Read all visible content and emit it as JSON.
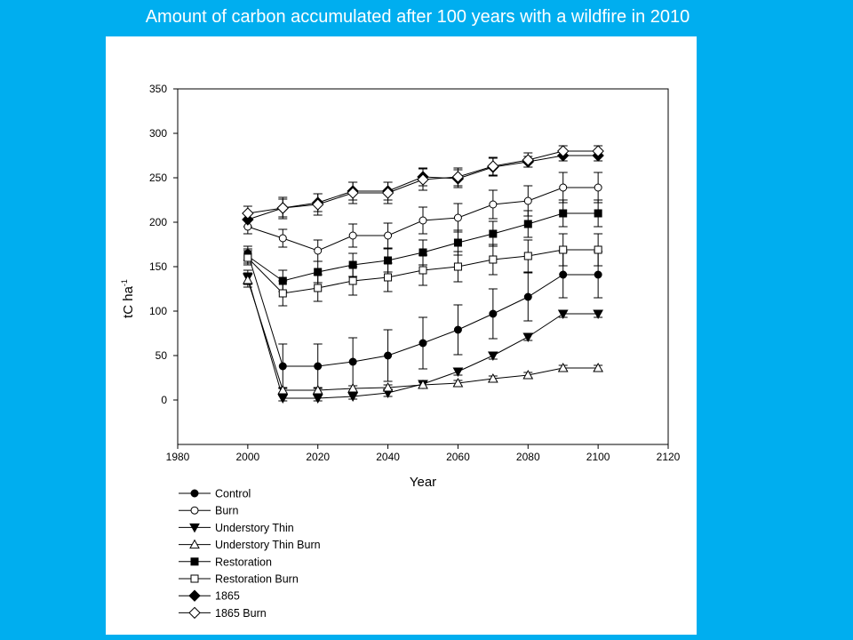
{
  "page": {
    "title": "Amount of carbon accumulated after 100 years with a wildfire in 2010",
    "background_color": "#00AEEF",
    "panel_color": "#FFFFFF"
  },
  "chart_data": {
    "type": "line",
    "xlabel": "Year",
    "ylabel_main": "tC ha",
    "ylabel_sup": "-1",
    "xlim": [
      1980,
      2120
    ],
    "ylim": [
      -50,
      350
    ],
    "xticks": [
      1980,
      2000,
      2020,
      2040,
      2060,
      2080,
      2100,
      2120
    ],
    "yticks": [
      0,
      50,
      100,
      150,
      200,
      250,
      300,
      350
    ],
    "grid": false,
    "error_bars": true,
    "legend_position": "below-plot",
    "x": [
      2000,
      2010,
      2020,
      2030,
      2040,
      2050,
      2060,
      2070,
      2080,
      2090,
      2100
    ],
    "series": [
      {
        "name": "Control",
        "marker": "circle",
        "filled": true,
        "values": [
          165,
          38,
          38,
          43,
          50,
          64,
          79,
          97,
          116,
          141,
          141
        ],
        "errors": [
          8,
          25,
          25,
          27,
          29,
          29,
          28,
          28,
          27,
          26,
          26
        ]
      },
      {
        "name": "Burn",
        "marker": "circle",
        "filled": false,
        "values": [
          195,
          182,
          168,
          185,
          185,
          202,
          205,
          220,
          224,
          239,
          239
        ],
        "errors": [
          8,
          10,
          12,
          13,
          14,
          15,
          16,
          16,
          17,
          17,
          17
        ]
      },
      {
        "name": "Understory Thin",
        "marker": "triangle-down",
        "filled": true,
        "values": [
          138,
          2,
          2,
          4,
          8,
          18,
          32,
          50,
          71,
          97,
          97
        ],
        "errors": [
          8,
          3,
          3,
          3,
          4,
          4,
          4,
          4,
          4,
          4,
          4
        ]
      },
      {
        "name": "Understory Thin Burn",
        "marker": "triangle-up",
        "filled": false,
        "values": [
          135,
          11,
          11,
          13,
          14,
          17,
          19,
          24,
          28,
          36,
          36
        ],
        "errors": [
          8,
          3,
          3,
          3,
          3,
          3,
          3,
          3,
          3,
          3,
          3
        ]
      },
      {
        "name": "Restoration",
        "marker": "square",
        "filled": true,
        "values": [
          162,
          134,
          144,
          152,
          157,
          166,
          177,
          187,
          198,
          210,
          210
        ],
        "errors": [
          8,
          12,
          12,
          13,
          13,
          14,
          14,
          14,
          15,
          15,
          15
        ]
      },
      {
        "name": "Restoration Burn",
        "marker": "square",
        "filled": false,
        "values": [
          160,
          120,
          126,
          134,
          138,
          146,
          150,
          158,
          162,
          169,
          169
        ],
        "errors": [
          8,
          14,
          15,
          16,
          16,
          17,
          17,
          17,
          18,
          18,
          18
        ]
      },
      {
        "name": "1865",
        "marker": "diamond",
        "filled": true,
        "values": [
          203,
          216,
          222,
          235,
          235,
          251,
          249,
          262,
          268,
          275,
          275
        ],
        "errors": [
          8,
          10,
          10,
          10,
          10,
          10,
          10,
          10,
          6,
          6,
          6
        ]
      },
      {
        "name": "1865 Burn",
        "marker": "diamond",
        "filled": false,
        "values": [
          210,
          216,
          220,
          233,
          233,
          248,
          251,
          263,
          270,
          280,
          280
        ],
        "errors": [
          8,
          12,
          12,
          12,
          12,
          12,
          10,
          10,
          8,
          6,
          6
        ]
      }
    ]
  }
}
